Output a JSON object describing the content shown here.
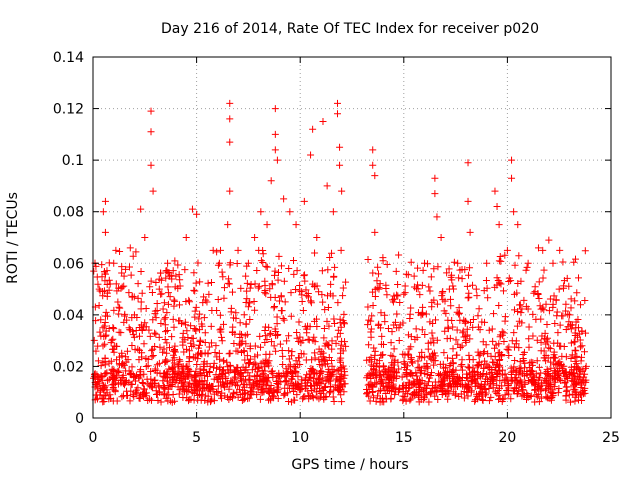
{
  "chart_data": {
    "type": "scatter",
    "title": "Day 216 of 2014, Rate Of TEC Index for receiver p020",
    "xlabel": "GPS time / hours",
    "ylabel": "ROTI / TECUs",
    "xlim": [
      0,
      25
    ],
    "ylim": [
      0,
      0.14
    ],
    "x_ticks": [
      0,
      5,
      10,
      15,
      20,
      25
    ],
    "x_tick_labels": [
      "0",
      "5",
      "10",
      "15",
      "20",
      "25"
    ],
    "y_ticks": [
      0,
      0.02,
      0.04,
      0.06,
      0.08,
      0.1,
      0.12,
      0.14
    ],
    "y_tick_labels": [
      "0",
      "0.02",
      "0.04",
      "0.06",
      "0.08",
      "0.1",
      "0.12",
      "0.14"
    ],
    "grid": true,
    "marker": "+",
    "marker_color": "#ff0000",
    "data_gap_hours": [
      12.2,
      13.2
    ],
    "series": [
      {
        "name": "ROTI",
        "points": [
          [
            0.1,
            0.012
          ],
          [
            0.3,
            0.05
          ],
          [
            0.5,
            0.08
          ],
          [
            0.6,
            0.084
          ],
          [
            0.6,
            0.072
          ],
          [
            1.0,
            0.06
          ],
          [
            1.2,
            0.045
          ],
          [
            1.5,
            0.055
          ],
          [
            1.8,
            0.066
          ],
          [
            2.0,
            0.04
          ],
          [
            2.3,
            0.081
          ],
          [
            2.5,
            0.07
          ],
          [
            2.8,
            0.119
          ],
          [
            2.8,
            0.111
          ],
          [
            2.8,
            0.098
          ],
          [
            2.9,
            0.088
          ],
          [
            3.2,
            0.05
          ],
          [
            3.6,
            0.06
          ],
          [
            4.0,
            0.055
          ],
          [
            4.5,
            0.07
          ],
          [
            4.8,
            0.081
          ],
          [
            5.0,
            0.079
          ],
          [
            5.5,
            0.045
          ],
          [
            5.8,
            0.065
          ],
          [
            6.1,
            0.06
          ],
          [
            6.5,
            0.075
          ],
          [
            6.6,
            0.122
          ],
          [
            6.6,
            0.116
          ],
          [
            6.6,
            0.107
          ],
          [
            6.6,
            0.088
          ],
          [
            7.0,
            0.065
          ],
          [
            7.5,
            0.06
          ],
          [
            7.8,
            0.07
          ],
          [
            8.1,
            0.08
          ],
          [
            8.4,
            0.075
          ],
          [
            8.6,
            0.092
          ],
          [
            8.8,
            0.11
          ],
          [
            8.8,
            0.12
          ],
          [
            8.8,
            0.104
          ],
          [
            8.9,
            0.1
          ],
          [
            9.2,
            0.085
          ],
          [
            9.5,
            0.08
          ],
          [
            9.8,
            0.075
          ],
          [
            10.2,
            0.084
          ],
          [
            10.5,
            0.102
          ],
          [
            10.6,
            0.112
          ],
          [
            10.8,
            0.07
          ],
          [
            11.1,
            0.115
          ],
          [
            11.3,
            0.09
          ],
          [
            11.6,
            0.08
          ],
          [
            11.8,
            0.122
          ],
          [
            11.8,
            0.118
          ],
          [
            11.9,
            0.105
          ],
          [
            11.9,
            0.098
          ],
          [
            12.0,
            0.088
          ],
          [
            13.5,
            0.104
          ],
          [
            13.5,
            0.098
          ],
          [
            13.6,
            0.094
          ],
          [
            13.6,
            0.072
          ],
          [
            13.8,
            0.05
          ],
          [
            14.0,
            0.061
          ],
          [
            14.5,
            0.045
          ],
          [
            15.0,
            0.048
          ],
          [
            15.5,
            0.055
          ],
          [
            16.0,
            0.06
          ],
          [
            16.5,
            0.093
          ],
          [
            16.5,
            0.087
          ],
          [
            16.6,
            0.078
          ],
          [
            16.8,
            0.07
          ],
          [
            17.2,
            0.05
          ],
          [
            17.6,
            0.06
          ],
          [
            18.1,
            0.099
          ],
          [
            18.1,
            0.084
          ],
          [
            18.2,
            0.072
          ],
          [
            18.5,
            0.05
          ],
          [
            19.0,
            0.06
          ],
          [
            19.4,
            0.088
          ],
          [
            19.5,
            0.082
          ],
          [
            19.6,
            0.075
          ],
          [
            20.0,
            0.065
          ],
          [
            20.2,
            0.1
          ],
          [
            20.2,
            0.093
          ],
          [
            20.3,
            0.08
          ],
          [
            20.5,
            0.075
          ],
          [
            21.0,
            0.06
          ],
          [
            21.5,
            0.066
          ],
          [
            22.0,
            0.069
          ],
          [
            22.2,
            0.06
          ],
          [
            22.5,
            0.05
          ],
          [
            23.0,
            0.04
          ],
          [
            23.3,
            0.035
          ],
          [
            23.6,
            0.028
          ],
          [
            23.8,
            0.02
          ]
        ]
      }
    ]
  }
}
